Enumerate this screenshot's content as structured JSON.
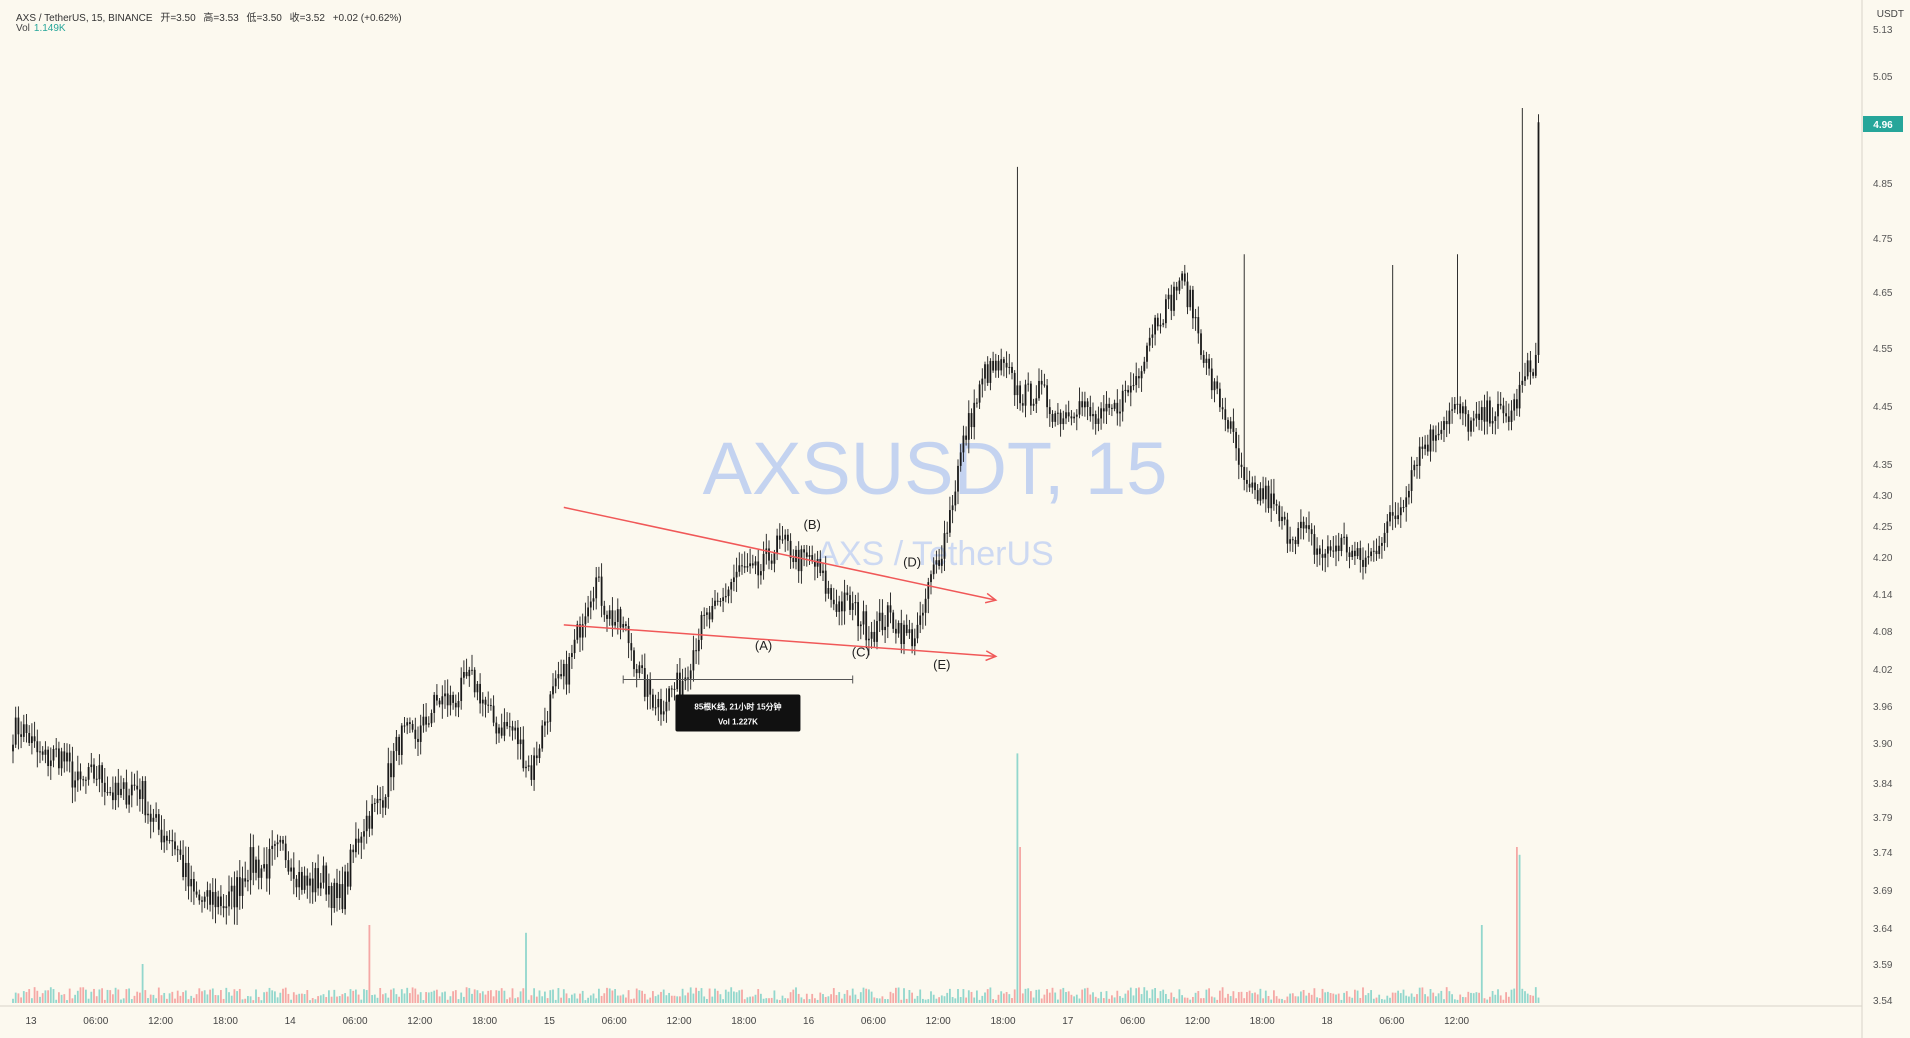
{
  "header": {
    "symbol": "AXS / TetherUS, 15, BINANCE",
    "open": "开=3.50",
    "high": "高=3.53",
    "low": "低=3.50",
    "close": "收=3.52",
    "change": "+0.02 (+0.62%)",
    "vol_label": "Vol",
    "vol_value": "1.149K"
  },
  "currency": "USDT",
  "watermark": {
    "main": "AXSUSDT, 15",
    "sub": "AXS / TetherUS"
  },
  "colors": {
    "background": "#fcf9ef",
    "up": "#26a69a",
    "down": "#ef5350",
    "candle": "#1a1a1a",
    "trendline": "#f05858",
    "price_tag": "#26a69a"
  },
  "last_price": "4.96",
  "measure_tooltip": {
    "line1": "85根K线, 21小时 15分钟",
    "line2": "Vol 1.227K"
  },
  "wave_labels": [
    {
      "label": "(A)",
      "bar": 278,
      "price": 4.05
    },
    {
      "label": "(B)",
      "bar": 296,
      "price": 4.245
    },
    {
      "label": "(C)",
      "bar": 314,
      "price": 4.04
    },
    {
      "label": "(D)",
      "bar": 333,
      "price": 4.185
    },
    {
      "label": "(E)",
      "bar": 344,
      "price": 4.02
    }
  ],
  "chart_data": {
    "type": "candlestick",
    "title": "AXS / TetherUS, 15, BINANCE",
    "interval": "15m",
    "ylabel": "USDT",
    "ylim": [
      3.54,
      5.13
    ],
    "y_ticks": [
      "5.13",
      "5.05",
      "4.96",
      "4.85",
      "4.75",
      "4.65",
      "4.55",
      "4.45",
      "4.35",
      "4.30",
      "4.25",
      "4.20",
      "4.14",
      "4.08",
      "4.02",
      "3.96",
      "3.90",
      "3.84",
      "3.79",
      "3.74",
      "3.69",
      "3.64",
      "3.59",
      "3.54"
    ],
    "x_ticks": [
      "13",
      "06:00",
      "12:00",
      "18:00",
      "14",
      "06:00",
      "12:00",
      "18:00",
      "15",
      "06:00",
      "12:00",
      "18:00",
      "16",
      "06:00",
      "12:00",
      "18:00",
      "17",
      "06:00",
      "12:00",
      "18:00",
      "18",
      "06:00",
      "12:00"
    ],
    "anchor_bars": [
      0,
      24,
      48,
      72,
      96,
      120,
      144,
      168,
      192,
      216,
      240,
      264,
      288,
      312,
      336,
      360,
      384,
      408,
      432,
      456,
      480,
      504,
      528,
      552,
      564
    ],
    "anchor_close": [
      3.92,
      3.85,
      3.82,
      3.66,
      3.74,
      3.68,
      3.9,
      4.0,
      3.87,
      4.16,
      3.95,
      4.15,
      4.22,
      4.1,
      4.08,
      4.52,
      4.45,
      4.43,
      4.68,
      4.32,
      4.22,
      4.2,
      4.43,
      4.43,
      4.52
    ],
    "close_end": 4.96,
    "events": [
      {
        "bar": 344,
        "high": 4.2
      },
      {
        "bar": 348,
        "high": 4.3
      },
      {
        "bar": 372,
        "high": 4.88
      },
      {
        "bar": 456,
        "high": 4.72
      },
      {
        "bar": 511,
        "high": 4.7
      },
      {
        "bar": 535,
        "high": 4.72
      },
      {
        "bar": 559,
        "high": 4.99
      }
    ],
    "trendlines": [
      {
        "from_bar": 204,
        "from_price": 4.28,
        "to_bar": 364,
        "to_price": 4.13,
        "arrow": true
      },
      {
        "from_bar": 204,
        "from_price": 4.09,
        "to_bar": 364,
        "to_price": 4.04,
        "arrow": true
      }
    ],
    "measure": {
      "from_bar": 226,
      "to_bar": 311,
      "price": 4.003,
      "bars": 85
    },
    "volume_spikes": [
      {
        "bar": 48,
        "vol": 0.5
      },
      {
        "bar": 132,
        "vol": 1.0
      },
      {
        "bar": 190,
        "vol": 0.9
      },
      {
        "bar": 372,
        "vol": 3.2
      },
      {
        "bar": 373,
        "vol": 2.0
      },
      {
        "bar": 544,
        "vol": 1.0
      },
      {
        "bar": 557,
        "vol": 2.0
      },
      {
        "bar": 558,
        "vol": 1.9
      }
    ],
    "volume_base": 0.12
  }
}
